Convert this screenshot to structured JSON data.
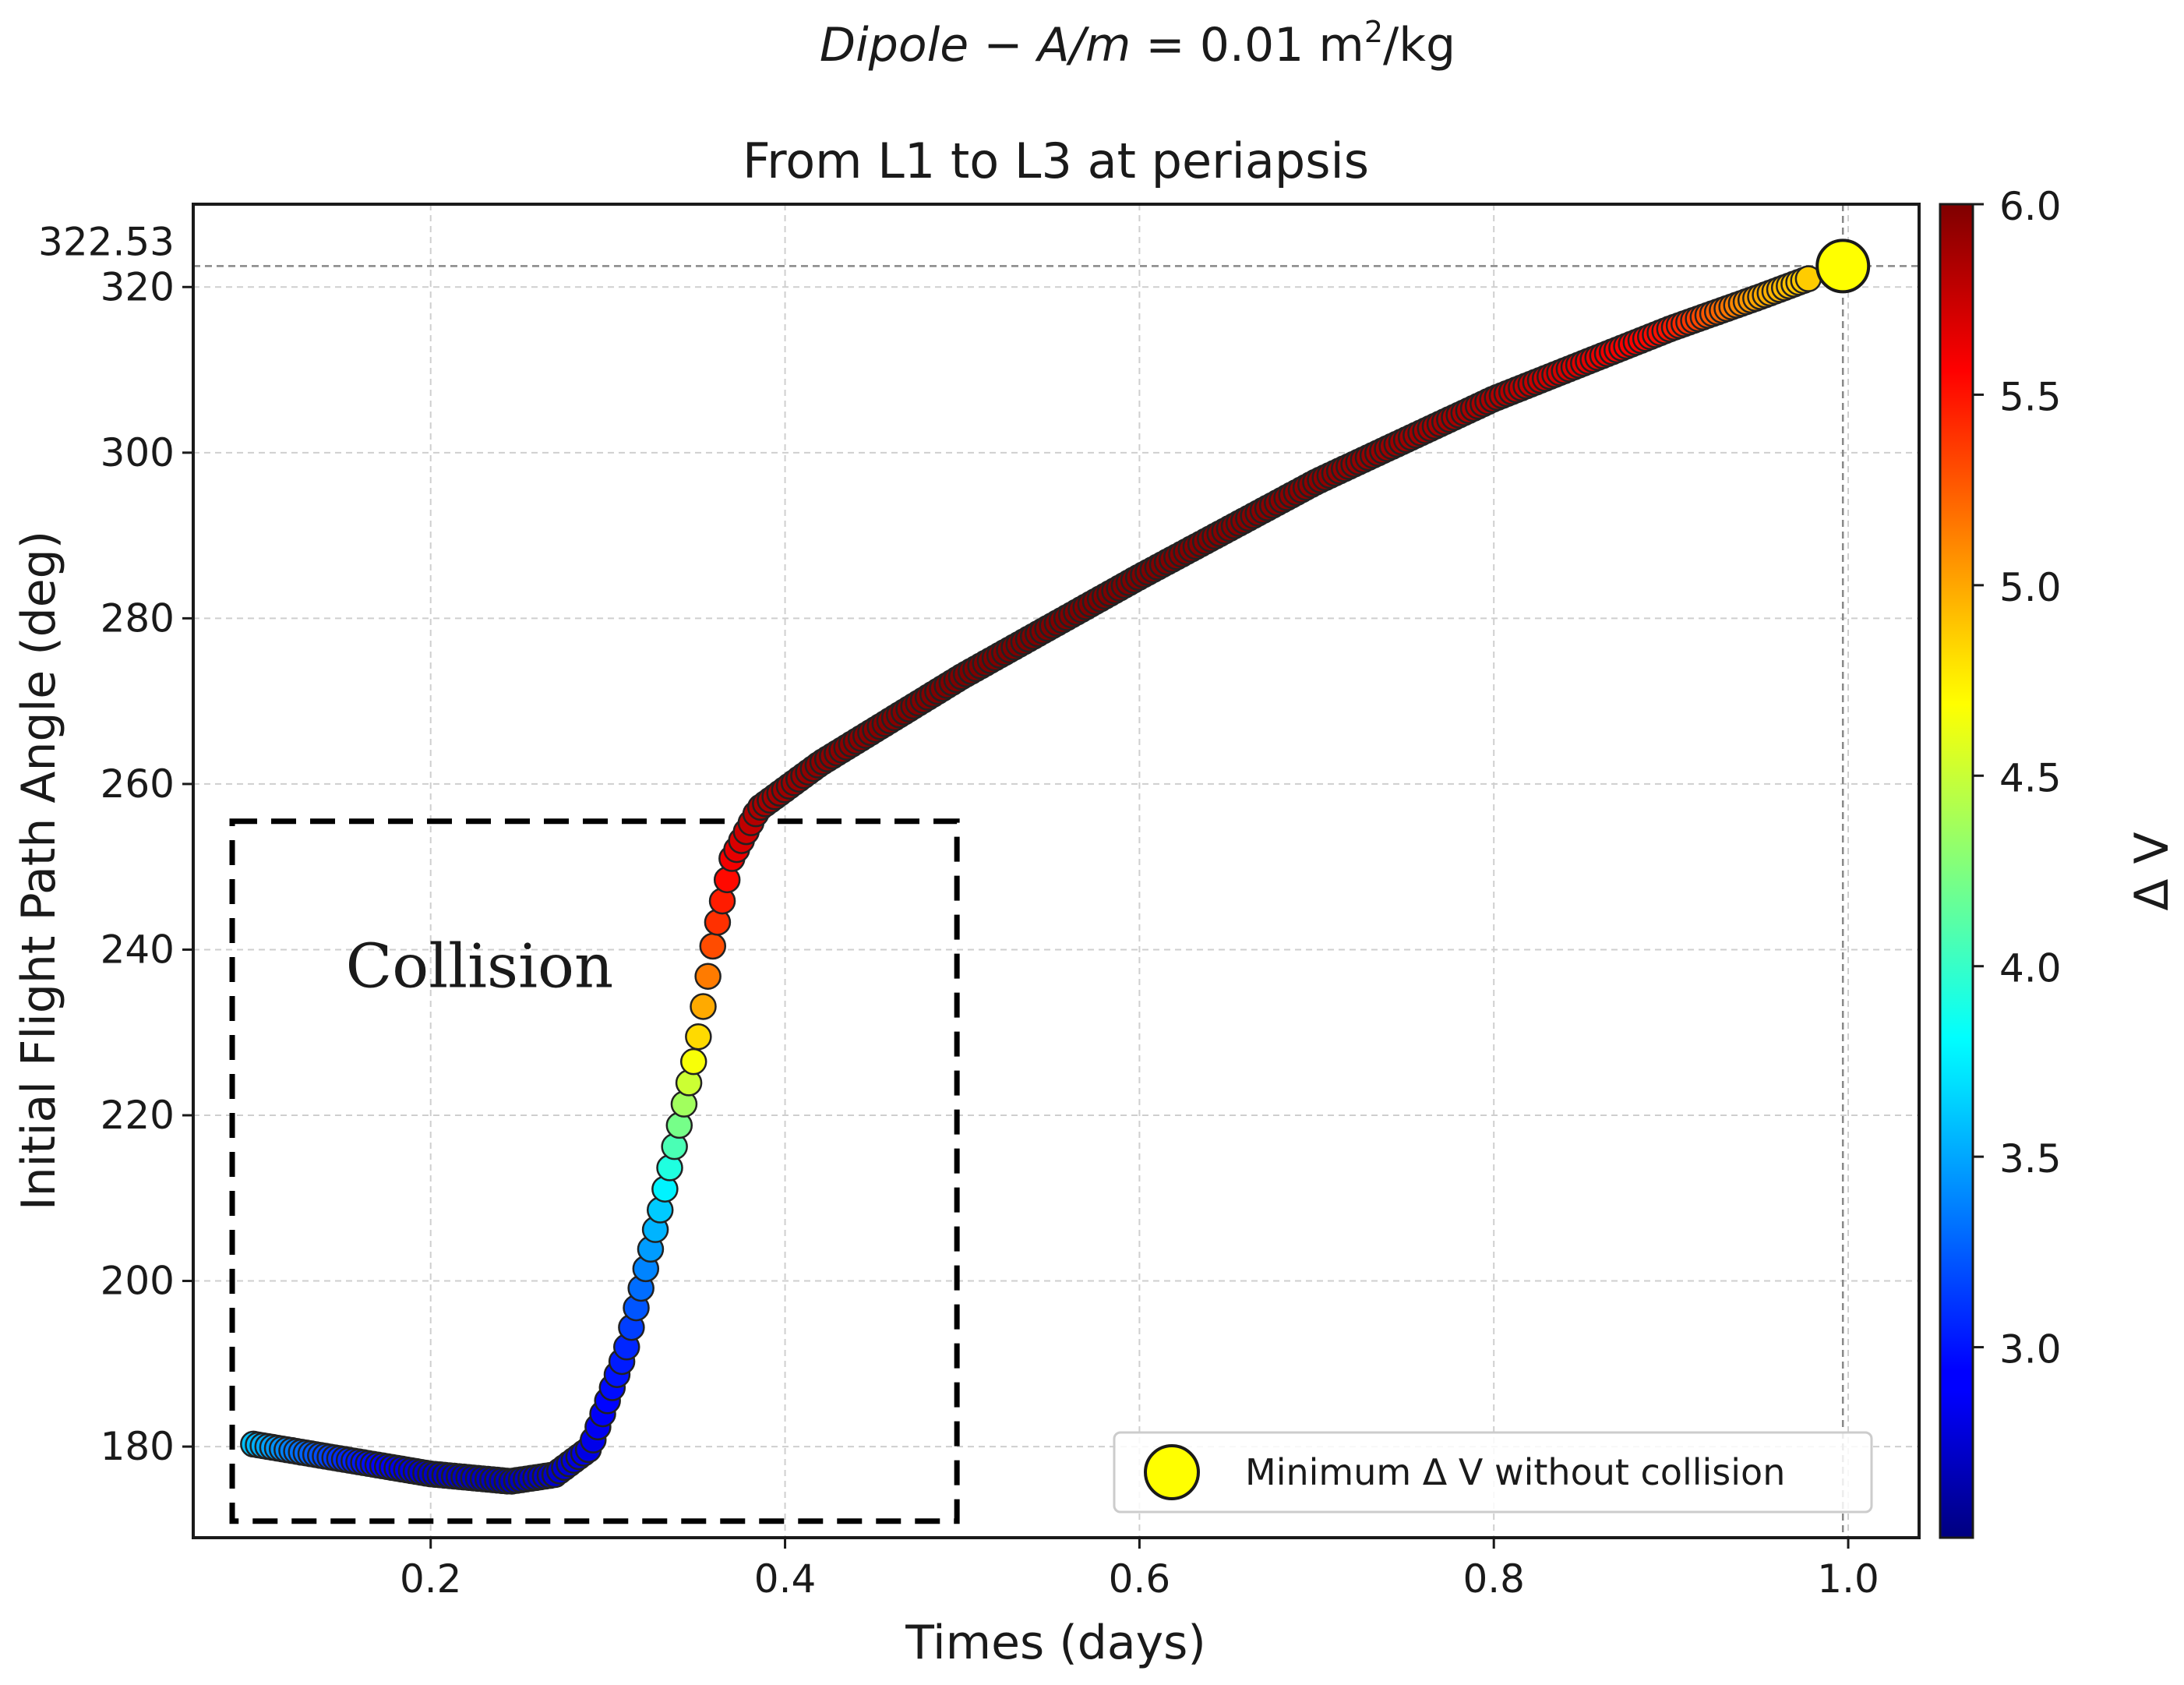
{
  "chart_data": {
    "type": "scatter",
    "suptitle": {
      "lhs_italic": "Dipole",
      "minus": " − ",
      "am_italic": "A/m",
      "equals": " = ",
      "value": "0.01",
      "unit_base": " m",
      "unit_sup": "2",
      "unit_tail": "/kg"
    },
    "title": "From L1 to L3 at periapsis",
    "xlabel": "Times (days)",
    "ylabel": "Initial Flight Path Angle (deg)",
    "xlim": [
      0.066,
      1.04
    ],
    "ylim": [
      169,
      330
    ],
    "xticks": [
      0.2,
      0.4,
      0.6,
      0.8,
      1.0
    ],
    "xtick_labels": [
      "0.2",
      "0.4",
      "0.6",
      "0.8",
      "1.0"
    ],
    "yticks": [
      180,
      200,
      220,
      240,
      260,
      280,
      300,
      320
    ],
    "ytick_labels": [
      "180",
      "200",
      "220",
      "240",
      "260",
      "280",
      "300",
      "320"
    ],
    "extra_ytick": {
      "value": 322.53,
      "label": "322.53"
    },
    "grid": true,
    "colorbar": {
      "label": "Δ V",
      "range": [
        2.5,
        6.0
      ],
      "ticks": [
        3.0,
        3.5,
        4.0,
        4.5,
        5.0,
        5.5,
        6.0
      ],
      "tick_labels": [
        "3.0",
        "3.5",
        "4.0",
        "4.5",
        "5.0",
        "5.5",
        "6.0"
      ],
      "colormap": "jet"
    },
    "curve_anchors": [
      {
        "x": 0.1,
        "y": 180.3,
        "dv": 3.6
      },
      {
        "x": 0.15,
        "y": 178.5,
        "dv": 3.1
      },
      {
        "x": 0.2,
        "y": 176.7,
        "dv": 2.75
      },
      {
        "x": 0.245,
        "y": 175.8,
        "dv": 2.7
      },
      {
        "x": 0.27,
        "y": 176.6,
        "dv": 2.75
      },
      {
        "x": 0.29,
        "y": 179.8,
        "dv": 2.85
      },
      {
        "x": 0.31,
        "y": 191.5,
        "dv": 3.05
      },
      {
        "x": 0.33,
        "y": 209.0,
        "dv": 3.65
      },
      {
        "x": 0.35,
        "y": 228.0,
        "dv": 4.75
      },
      {
        "x": 0.36,
        "y": 241.5,
        "dv": 5.35
      },
      {
        "x": 0.37,
        "y": 251.0,
        "dv": 5.6
      },
      {
        "x": 0.385,
        "y": 257.0,
        "dv": 5.85
      },
      {
        "x": 0.42,
        "y": 262.5,
        "dv": 5.95
      },
      {
        "x": 0.5,
        "y": 273.0,
        "dv": 6.0
      },
      {
        "x": 0.6,
        "y": 285.0,
        "dv": 6.0
      },
      {
        "x": 0.7,
        "y": 296.5,
        "dv": 5.95
      },
      {
        "x": 0.8,
        "y": 306.5,
        "dv": 5.85
      },
      {
        "x": 0.9,
        "y": 315.0,
        "dv": 5.5
      },
      {
        "x": 0.95,
        "y": 318.8,
        "dv": 5.0
      },
      {
        "x": 0.98,
        "y": 321.2,
        "dv": 4.85
      }
    ],
    "minimum_point": {
      "x": 0.997,
      "y": 322.53
    },
    "legend": {
      "label": "Minimum Δ V without collision",
      "color": "#ffff00",
      "position": "lower-right"
    },
    "annotation": {
      "text": "Collision",
      "box_x": [
        0.088,
        0.497
      ],
      "box_y": [
        171,
        255.5
      ]
    },
    "reference_lines": {
      "x": 0.997,
      "y": 322.53
    }
  }
}
